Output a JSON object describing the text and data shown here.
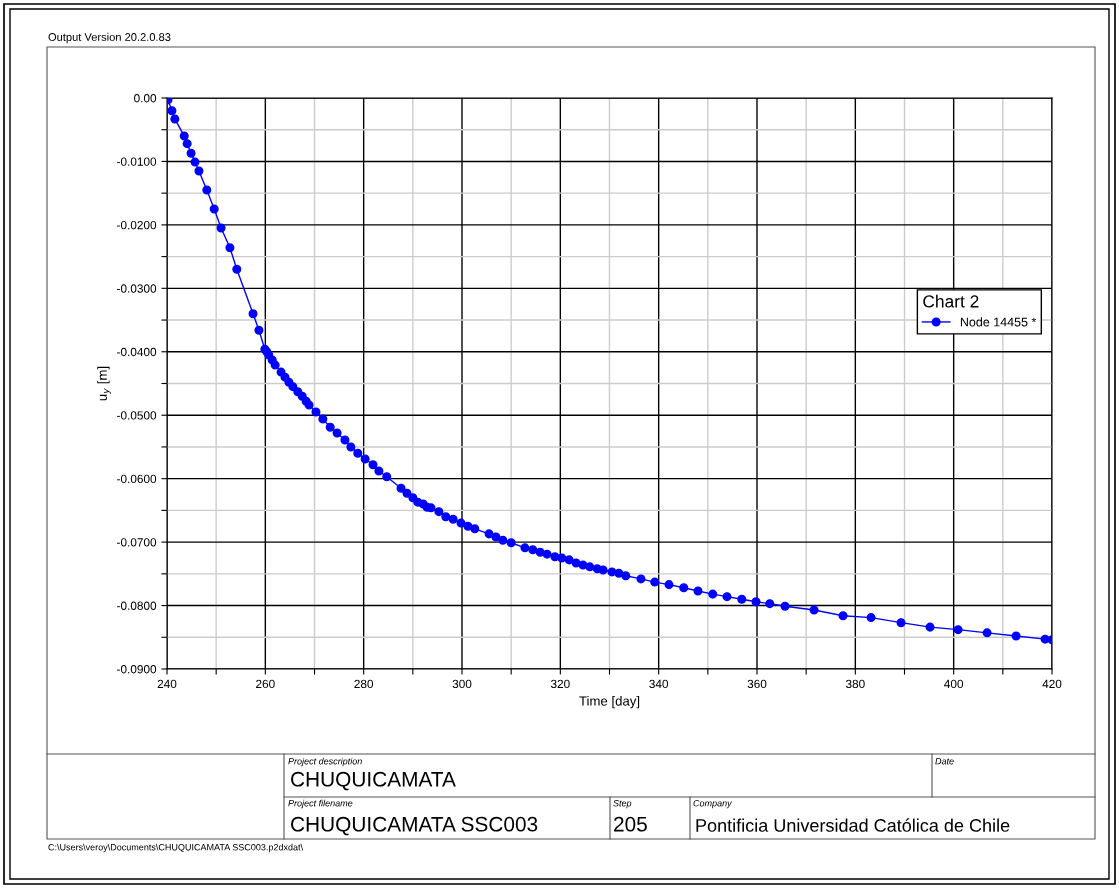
{
  "chart_data": {
    "type": "line",
    "xlabel": "Time [day]",
    "ylabel": "u$_{y}$ [m]",
    "legend_title": "Chart 2",
    "legend": "right",
    "grid": true,
    "marker": "circle",
    "line_style": "solid",
    "xlim": [
      240,
      420
    ],
    "xticks": [
      240,
      {
        "value": 250,
        "label": null
      },
      260,
      {
        "value": 270,
        "label": null
      },
      280,
      {
        "value": 290,
        "label": null
      },
      300,
      {
        "value": 310,
        "label": null
      },
      320,
      {
        "value": 330,
        "label": null
      },
      340,
      {
        "value": 350,
        "label": null
      },
      360,
      {
        "value": 370,
        "label": null
      },
      380,
      {
        "value": 390,
        "label": null
      },
      400,
      {
        "value": 410,
        "label": null
      },
      420
    ],
    "ylim": [
      -0.09,
      0
    ],
    "yticks": [
      {
        "value": 0,
        "label": "0.00"
      },
      {
        "value": -0.005,
        "label": null
      },
      {
        "value": -0.01,
        "label": "-0.0100"
      },
      {
        "value": -0.015,
        "label": null
      },
      {
        "value": -0.02,
        "label": "-0.0200"
      },
      {
        "value": -0.025,
        "label": null
      },
      {
        "value": -0.03,
        "label": "-0.0300"
      },
      {
        "value": -0.035,
        "label": null
      },
      {
        "value": -0.04,
        "label": "-0.0400"
      },
      {
        "value": -0.045,
        "label": null
      },
      {
        "value": -0.05,
        "label": "-0.0500"
      },
      {
        "value": -0.055,
        "label": null
      },
      {
        "value": -0.06,
        "label": "-0.0600"
      },
      {
        "value": -0.065,
        "label": null
      },
      {
        "value": -0.07,
        "label": "-0.0700"
      },
      {
        "value": -0.075,
        "label": null
      },
      {
        "value": -0.08,
        "label": "-0.0800"
      },
      {
        "value": -0.085,
        "label": null
      },
      {
        "value": -0.09,
        "label": "-0.0900"
      }
    ],
    "series": [
      {
        "name": "Node 14455 *",
        "color": "#0000ff",
        "x": [
          240.2,
          241.0,
          241.6,
          243.5,
          244.1,
          244.9,
          245.7,
          246.5,
          248.1,
          249.6,
          251.0,
          252.8,
          254.2,
          257.5,
          258.7,
          259.9,
          260.3,
          260.7,
          261.4,
          262.0,
          263.2,
          264.0,
          264.8,
          265.6,
          266.6,
          267.5,
          268.3,
          268.9,
          270.3,
          271.7,
          273.2,
          274.6,
          276.2,
          277.4,
          278.8,
          280.3,
          281.9,
          283.1,
          284.7,
          287.6,
          288.8,
          290.0,
          291.0,
          292.1,
          292.9,
          293.7,
          295.3,
          296.7,
          298.2,
          299.8,
          301.2,
          302.6,
          305.5,
          306.9,
          308.3,
          310.0,
          312.8,
          314.4,
          315.9,
          317.3,
          318.9,
          320.3,
          321.8,
          323.2,
          324.6,
          326.0,
          327.5,
          328.7,
          330.5,
          331.9,
          333.3,
          336.4,
          339.2,
          342.1,
          345.1,
          348.0,
          351.0,
          353.9,
          356.9,
          359.8,
          362.6,
          365.7,
          371.6,
          377.5,
          383.2,
          389.3,
          395.2,
          400.9,
          406.8,
          412.7,
          418.6,
          420.0
        ],
        "values": [
          -0.0003,
          -0.002,
          -0.0033,
          -0.006,
          -0.0072,
          -0.0087,
          -0.0101,
          -0.0115,
          -0.0145,
          -0.0175,
          -0.0205,
          -0.0236,
          -0.027,
          -0.034,
          -0.0366,
          -0.0396,
          -0.04,
          -0.0405,
          -0.0413,
          -0.0421,
          -0.0432,
          -0.044,
          -0.0448,
          -0.0455,
          -0.0463,
          -0.047,
          -0.0478,
          -0.0484,
          -0.0495,
          -0.0506,
          -0.0519,
          -0.0528,
          -0.0539,
          -0.055,
          -0.056,
          -0.0569,
          -0.0578,
          -0.0588,
          -0.0597,
          -0.0615,
          -0.0623,
          -0.063,
          -0.0637,
          -0.064,
          -0.0645,
          -0.0646,
          -0.0652,
          -0.066,
          -0.0664,
          -0.067,
          -0.0675,
          -0.0679,
          -0.0687,
          -0.0692,
          -0.0697,
          -0.0701,
          -0.0709,
          -0.0712,
          -0.0716,
          -0.0719,
          -0.0723,
          -0.0725,
          -0.0728,
          -0.0733,
          -0.0736,
          -0.0739,
          -0.0742,
          -0.0744,
          -0.0747,
          -0.0749,
          -0.0753,
          -0.0758,
          -0.0763,
          -0.0767,
          -0.0772,
          -0.0777,
          -0.0782,
          -0.0786,
          -0.079,
          -0.0794,
          -0.0797,
          -0.0801,
          -0.0807,
          -0.0816,
          -0.0819,
          -0.0827,
          -0.0834,
          -0.0838,
          -0.0843,
          -0.0848,
          -0.0853,
          -0.0854
        ]
      }
    ],
    "annotations": [
      "Output Version 20.2.0.83",
      "Project description",
      "CHUQUICAMATA",
      "Date",
      "Project filename",
      "CHUQUICAMATA SSC003",
      "Step",
      "205",
      "Company",
      "Pontificia Universidad Católica de Chile",
      "C:\\Users\\veroy\\Documents\\CHUQUICAMATA SSC003.p2dxdat\\"
    ]
  }
}
